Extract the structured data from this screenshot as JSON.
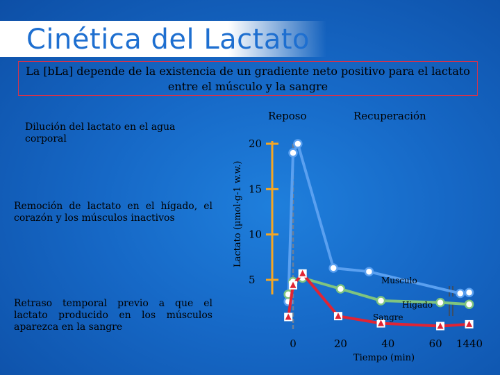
{
  "slide": {
    "title": "Cinética del Lactato",
    "subtitle": "La [bLa] depende de la existencia de un gradiente neto positivo para el lactato entre el músculo y la sangre",
    "notes": [
      "Dilución del lactato en el agua corporal",
      "Remoción de lactato en el hígado, el corazón y los músculos inactivos",
      "Retraso temporal previo a que el lactato producido en los músculos aparezca en la sangre"
    ]
  },
  "colors": {
    "background": "#1668c6",
    "title": "#1e6fd0",
    "musculo": "#5aa0f0",
    "higado": "#7fc47f",
    "sangre": "#e02434",
    "axis": "#f5a623"
  },
  "chart_data": {
    "type": "line",
    "ylabel": "Lactato (µmol·g-1 w.w.)",
    "xlabel": "Tiempo (min)",
    "phase_labels": [
      "Reposo",
      "Recuperación"
    ],
    "y_ticks": [
      "5",
      "10",
      "15",
      "20"
    ],
    "ylim": [
      4,
      21
    ],
    "x_categories": [
      "0",
      "20",
      "40",
      "60",
      "1440"
    ],
    "axis_break": true,
    "series": [
      {
        "name": "Musculo",
        "marker": "circle",
        "points": [
          [
            -2,
            2.6
          ],
          [
            0,
            19
          ],
          [
            2,
            20
          ],
          [
            17,
            6.3
          ],
          [
            32,
            5.9
          ],
          [
            70,
            3.5
          ],
          [
            74,
            3.6
          ]
        ],
        "label_position": "right"
      },
      {
        "name": "Higado",
        "marker": "circle",
        "points": [
          [
            -2,
            3.4
          ],
          [
            0,
            4.8
          ],
          [
            4,
            5.2
          ],
          [
            20,
            4.0
          ],
          [
            37,
            2.7
          ],
          [
            62,
            2.5
          ],
          [
            74,
            2.3
          ]
        ],
        "label_position": "right"
      },
      {
        "name": "Sangre",
        "marker": "triangle",
        "points": [
          [
            -2,
            0.9
          ],
          [
            0,
            4.4
          ],
          [
            4,
            5.7
          ],
          [
            19,
            1.0
          ],
          [
            37,
            0.2
          ],
          [
            62,
            -0.1
          ],
          [
            74,
            0.1
          ]
        ],
        "label_position": "right"
      }
    ]
  }
}
